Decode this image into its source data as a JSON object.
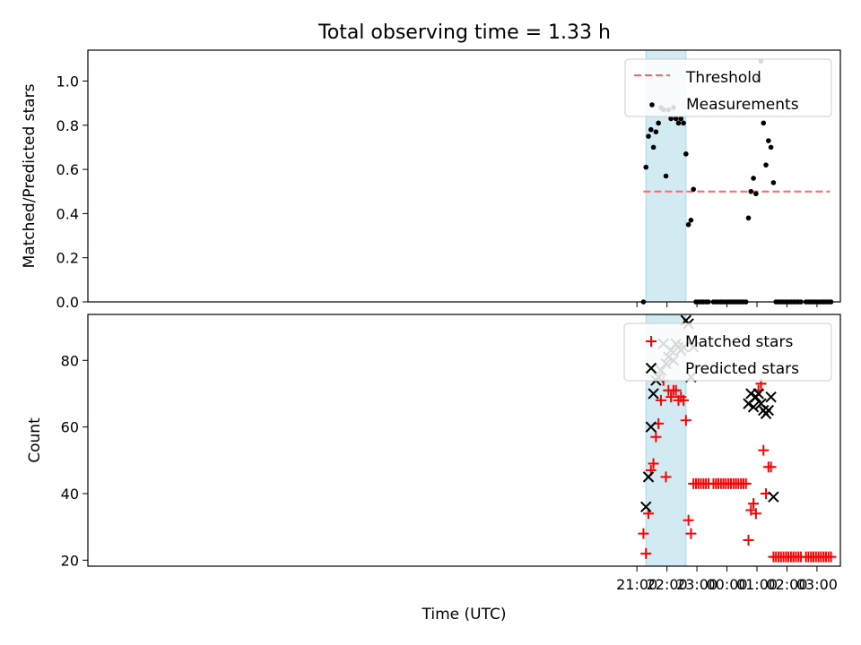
{
  "title": "Total observing time = 1.33 h",
  "colors": {
    "shade": "#add8e6",
    "threshold": "#ff6666",
    "measurement": "#000000",
    "matched": "#ff0000",
    "predicted": "#000000"
  },
  "chart_data": [
    {
      "type": "scatter",
      "panel": "top",
      "xlabel": "",
      "ylabel": "Matched/Predicted stars",
      "ylim": [
        0,
        1.14
      ],
      "yticks": [
        0.0,
        0.2,
        0.4,
        0.6,
        0.8,
        1.0
      ],
      "ytick_labels": [
        "0.0",
        "0.2",
        "0.4",
        "0.6",
        "0.8",
        "1.0"
      ],
      "x_unit": "hours after 00:00 UTC (negative = previous day)",
      "xlim": [
        -21.3,
        3.78
      ],
      "xticks": [
        -3,
        -2,
        -1,
        0,
        1,
        2,
        3
      ],
      "shaded_span": [
        "21:18",
        "22:38"
      ],
      "legend": {
        "location": "upper right",
        "entries": [
          "Threshold",
          "Measurements"
        ]
      },
      "series": [
        {
          "name": "Threshold",
          "kind": "dashed-line",
          "x": [
            "21:13",
            "03:26"
          ],
          "y": [
            0.5,
            0.5
          ]
        },
        {
          "name": "Measurements",
          "kind": "dots",
          "x": [
            "21:13",
            "21:18",
            "21:23",
            "21:28",
            "21:33",
            "21:38",
            "21:43",
            "21:48",
            "21:53",
            "21:58",
            "22:03",
            "22:08",
            "22:13",
            "22:18",
            "22:23",
            "22:28",
            "22:33",
            "22:38",
            "22:43",
            "22:48",
            "22:53",
            "22:58",
            "23:03",
            "23:08",
            "23:13",
            "23:18",
            "23:23",
            "23:33",
            "23:38",
            "23:43",
            "23:48",
            "23:53",
            "23:58",
            "00:03",
            "00:08",
            "00:13",
            "00:18",
            "00:23",
            "00:28",
            "00:33",
            "00:38",
            "00:43",
            "00:48",
            "00:53",
            "00:58",
            "01:03",
            "01:08",
            "01:13",
            "01:18",
            "01:23",
            "01:28",
            "01:33",
            "01:38",
            "01:43",
            "01:48",
            "01:53",
            "01:58",
            "02:03",
            "02:08",
            "02:13",
            "02:18",
            "02:23",
            "02:28",
            "02:38",
            "02:43",
            "02:48",
            "02:53",
            "02:58",
            "03:03",
            "03:08",
            "03:13",
            "03:18",
            "03:23",
            "03:28"
          ],
          "y": [
            0.0,
            0.61,
            0.75,
            0.78,
            0.7,
            0.77,
            0.81,
            0.88,
            0.87,
            0.57,
            0.87,
            0.83,
            0.88,
            0.83,
            0.81,
            0.83,
            0.81,
            0.67,
            0.35,
            0.37,
            0.51,
            0.0,
            0.0,
            0.0,
            0.0,
            0.0,
            0.0,
            0.0,
            0.0,
            0.0,
            0.0,
            0.0,
            0.0,
            0.0,
            0.0,
            0.0,
            0.0,
            0.0,
            0.0,
            0.0,
            0.0,
            0.38,
            0.5,
            0.56,
            0.49,
            1.01,
            1.09,
            0.81,
            0.62,
            0.73,
            0.7,
            0.54,
            0.0,
            0.0,
            0.0,
            0.0,
            0.0,
            0.0,
            0.0,
            0.0,
            0.0,
            0.0,
            0.0,
            0.0,
            0.0,
            0.0,
            0.0,
            0.0,
            0.0,
            0.0,
            0.0,
            0.0,
            0.0,
            0.0
          ]
        }
      ]
    },
    {
      "type": "scatter",
      "panel": "bottom",
      "xlabel": "Time (UTC)",
      "ylabel": "Count",
      "ylim": [
        18.2,
        93.8
      ],
      "yticks": [
        20,
        40,
        60,
        80
      ],
      "ytick_labels": [
        "20",
        "40",
        "60",
        "80"
      ],
      "x_unit": "hours after 00:00 UTC (negative = previous day)",
      "xlim": [
        -21.3,
        3.78
      ],
      "xticks": [
        -3,
        -2,
        -1,
        0,
        1,
        2,
        3
      ],
      "xtick_labels": [
        "21:00",
        "22:00",
        "23:00",
        "00:00",
        "01:00",
        "02:00",
        "03:00"
      ],
      "shaded_span": [
        "21:18",
        "22:38"
      ],
      "legend": {
        "location": "upper right",
        "entries": [
          "Matched stars",
          "Predicted stars"
        ]
      },
      "series": [
        {
          "name": "Matched stars",
          "marker": "plus",
          "x": [
            "21:13",
            "21:18",
            "21:23",
            "21:28",
            "21:33",
            "21:38",
            "21:43",
            "21:48",
            "21:53",
            "21:58",
            "22:03",
            "22:08",
            "22:13",
            "22:18",
            "22:23",
            "22:28",
            "22:33",
            "22:38",
            "22:43",
            "22:48",
            "22:53",
            "22:58",
            "23:03",
            "23:08",
            "23:13",
            "23:18",
            "23:23",
            "23:33",
            "23:38",
            "23:43",
            "23:48",
            "23:53",
            "23:58",
            "00:03",
            "00:08",
            "00:13",
            "00:18",
            "00:23",
            "00:28",
            "00:33",
            "00:38",
            "00:43",
            "00:48",
            "00:53",
            "00:58",
            "01:03",
            "01:08",
            "01:13",
            "01:18",
            "01:23",
            "01:28",
            "01:33",
            "01:38",
            "01:43",
            "01:48",
            "01:53",
            "01:58",
            "02:03",
            "02:08",
            "02:13",
            "02:18",
            "02:23",
            "02:28",
            "02:38",
            "02:43",
            "02:48",
            "02:53",
            "02:58",
            "03:03",
            "03:08",
            "03:13",
            "03:18",
            "03:23",
            "03:28"
          ],
          "y": [
            28,
            22,
            34,
            47,
            49,
            57,
            61,
            68,
            74,
            45,
            71,
            69,
            71,
            71,
            68,
            69,
            68,
            62,
            32,
            28,
            43,
            43,
            43,
            43,
            43,
            43,
            43,
            43,
            43,
            43,
            43,
            43,
            43,
            43,
            43,
            43,
            43,
            43,
            43,
            43,
            43,
            26,
            35,
            37,
            34,
            71,
            73,
            53,
            40,
            48,
            48,
            21,
            21,
            21,
            21,
            21,
            21,
            21,
            21,
            21,
            21,
            21,
            21,
            21,
            21,
            21,
            21,
            21,
            21,
            21,
            21,
            21,
            21,
            21
          ]
        },
        {
          "name": "Predicted stars",
          "marker": "x",
          "x": [
            "21:18",
            "21:23",
            "21:28",
            "21:33",
            "21:38",
            "21:43",
            "21:48",
            "21:53",
            "21:58",
            "22:03",
            "22:08",
            "22:13",
            "22:18",
            "22:23",
            "22:28",
            "22:33",
            "22:38",
            "22:43",
            "22:48",
            "22:53",
            "00:43",
            "00:48",
            "00:53",
            "00:58",
            "01:03",
            "01:08",
            "01:13",
            "01:18",
            "01:23",
            "01:28",
            "01:33"
          ],
          "y": [
            36,
            45,
            60,
            70,
            74,
            75,
            77,
            85,
            79,
            81,
            83,
            80,
            85,
            84,
            83,
            84,
            92,
            91,
            75,
            84,
            67,
            70,
            66,
            69,
            70,
            67,
            65,
            64,
            65,
            69,
            39
          ]
        }
      ]
    }
  ]
}
